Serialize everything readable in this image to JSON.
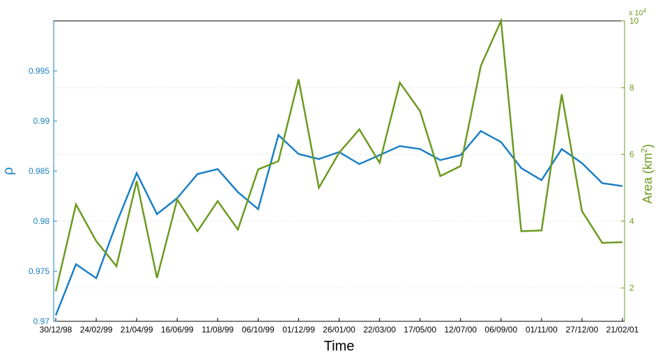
{
  "chart_data": {
    "type": "line",
    "xlabel": "Time",
    "x_ticks": [
      "30/12/98",
      "24/02/99",
      "21/04/99",
      "16/06/99",
      "11/08/99",
      "06/10/99",
      "01/12/99",
      "26/01/00",
      "22/03/00",
      "17/05/00",
      "12/07/00",
      "06/09/00",
      "01/11/00",
      "27/12/00",
      "21/02/01"
    ],
    "left_axis": {
      "label": "ρ",
      "ylim": [
        0.97,
        1.0
      ],
      "ticks": [
        0.97,
        0.975,
        0.98,
        0.985,
        0.99,
        0.995
      ],
      "tick_labels": [
        "0.97",
        "0.975",
        "0.98",
        "0.985",
        "0.99",
        "0.995"
      ]
    },
    "right_axis": {
      "label_prefix": "Area (km",
      "label_sup": "2",
      "label_suffix": ")",
      "exponent_label": "x 10",
      "exponent_sup": "4",
      "ylim": [
        1,
        10
      ],
      "ticks": [
        2,
        4,
        6,
        8,
        10
      ],
      "tick_labels": [
        "2",
        "4",
        "6",
        "8",
        "10"
      ]
    },
    "grid": "dotted horizontal at right-axis ticks",
    "colors": {
      "rho": "#1a7fc4",
      "area": "#6b9a1f"
    },
    "series": [
      {
        "axis": "left",
        "values": [
          0.9706,
          0.9757,
          0.9743,
          0.9798,
          0.9848,
          0.9807,
          0.9823,
          0.9847,
          0.9852,
          0.9829,
          0.9812,
          0.9886,
          0.9867,
          0.9862,
          0.9869,
          0.9857,
          0.9866,
          0.9875,
          0.9872,
          0.9861,
          0.9866,
          0.989,
          0.9879,
          0.9853,
          0.9841,
          0.9872,
          0.9858,
          0.9838,
          0.9835
        ]
      },
      {
        "axis": "right",
        "values": [
          1.9,
          4.5,
          3.4,
          2.65,
          5.2,
          2.3,
          4.65,
          3.7,
          4.6,
          3.75,
          5.55,
          5.8,
          8.25,
          5.0,
          6.05,
          6.75,
          5.75,
          8.15,
          7.3,
          5.35,
          5.65,
          8.65,
          10.0,
          3.7,
          3.72,
          7.8,
          4.3,
          3.35,
          3.37
        ]
      }
    ]
  }
}
